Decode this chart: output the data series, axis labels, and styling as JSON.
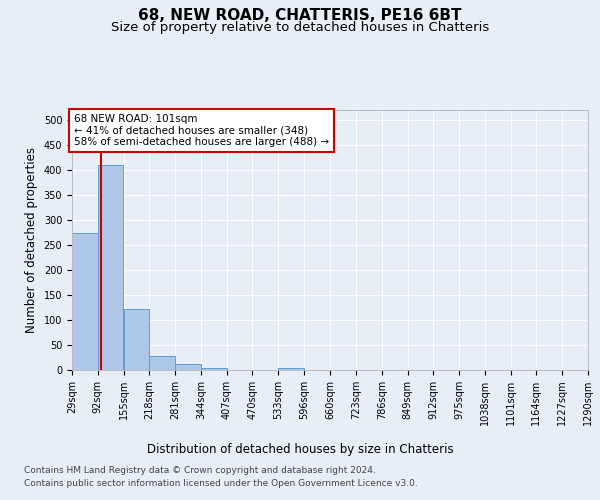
{
  "title1": "68, NEW ROAD, CHATTERIS, PE16 6BT",
  "title2": "Size of property relative to detached houses in Chatteris",
  "xlabel": "Distribution of detached houses by size in Chatteris",
  "ylabel": "Number of detached properties",
  "footnote1": "Contains HM Land Registry data © Crown copyright and database right 2024.",
  "footnote2": "Contains public sector information licensed under the Open Government Licence v3.0.",
  "bar_edges": [
    29,
    92,
    155,
    218,
    281,
    344,
    407,
    470,
    533,
    596,
    660,
    723,
    786,
    849,
    912,
    975,
    1038,
    1101,
    1164,
    1227,
    1290
  ],
  "bar_heights": [
    275,
    410,
    122,
    28,
    13,
    5,
    0,
    0,
    5,
    0,
    0,
    0,
    0,
    0,
    0,
    0,
    0,
    0,
    0,
    0
  ],
  "bar_color": "#aec6e8",
  "bar_edge_color": "#5a9fd4",
  "property_line_x": 101,
  "property_line_color": "#cc0000",
  "annotation_text": "68 NEW ROAD: 101sqm\n← 41% of detached houses are smaller (348)\n58% of semi-detached houses are larger (488) →",
  "annotation_box_color": "#cc0000",
  "annotation_text_color": "#000000",
  "ylim": [
    0,
    520
  ],
  "yticks": [
    0,
    50,
    100,
    150,
    200,
    250,
    300,
    350,
    400,
    450,
    500
  ],
  "bg_color": "#e8eef5",
  "plot_bg_color": "#e8eef5",
  "grid_color": "#ffffff",
  "title1_fontsize": 11,
  "title2_fontsize": 9.5,
  "axis_label_fontsize": 8.5,
  "tick_fontsize": 7,
  "footnote_fontsize": 6.5
}
